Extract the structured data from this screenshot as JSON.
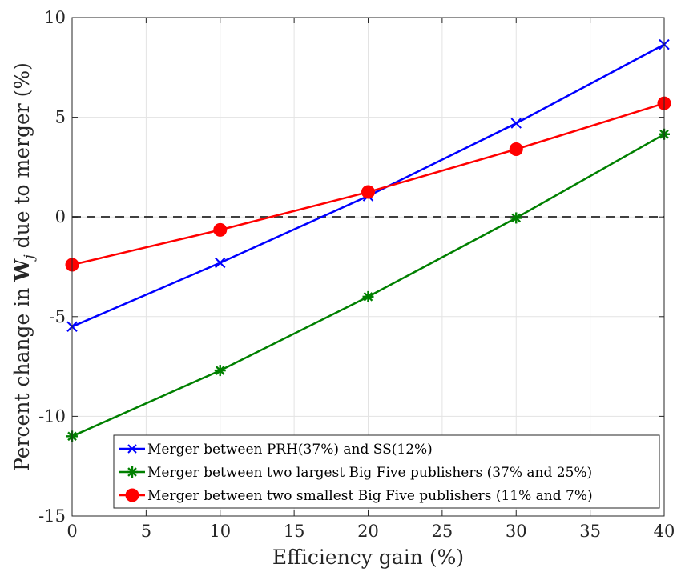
{
  "chart_data": {
    "type": "line",
    "x": [
      0,
      10,
      20,
      30,
      40
    ],
    "xlabel": "Efficiency gain (%)",
    "ylabel_parts": [
      "Percent change in ",
      "W",
      "j",
      " due to merger (%)"
    ],
    "xlim": [
      0,
      40
    ],
    "ylim": [
      -15,
      10
    ],
    "xticks": [
      0,
      5,
      10,
      15,
      20,
      25,
      30,
      35,
      40
    ],
    "xtick_labels": [
      "0",
      "5",
      "10",
      "15",
      "20",
      "25",
      "30",
      "35",
      "40"
    ],
    "yticks": [
      -15,
      -10,
      -5,
      0,
      5,
      10
    ],
    "ytick_labels": [
      "-15",
      "-10",
      "-5",
      "0",
      "5",
      "10"
    ],
    "grid": true,
    "reference_line": {
      "y": 0,
      "style": "dashed",
      "color": "#404040"
    },
    "legend_position": "bottom-right",
    "series": [
      {
        "name": "Merger between PRH(37%) and SS(12%)",
        "color": "#0000ff",
        "marker": "x",
        "values": [
          -5.5,
          -2.3,
          1.05,
          4.7,
          8.65
        ]
      },
      {
        "name": "Merger between two largest Big Five publishers (37% and 25%)",
        "color": "#008000",
        "marker": "asterisk",
        "values": [
          -11.0,
          -7.7,
          -4.0,
          -0.05,
          4.15
        ]
      },
      {
        "name": "Merger between two smallest Big Five publishers (11% and 7%)",
        "color": "#ff0000",
        "marker": "circle",
        "values": [
          -2.4,
          -0.65,
          1.25,
          3.4,
          5.7
        ]
      }
    ]
  }
}
